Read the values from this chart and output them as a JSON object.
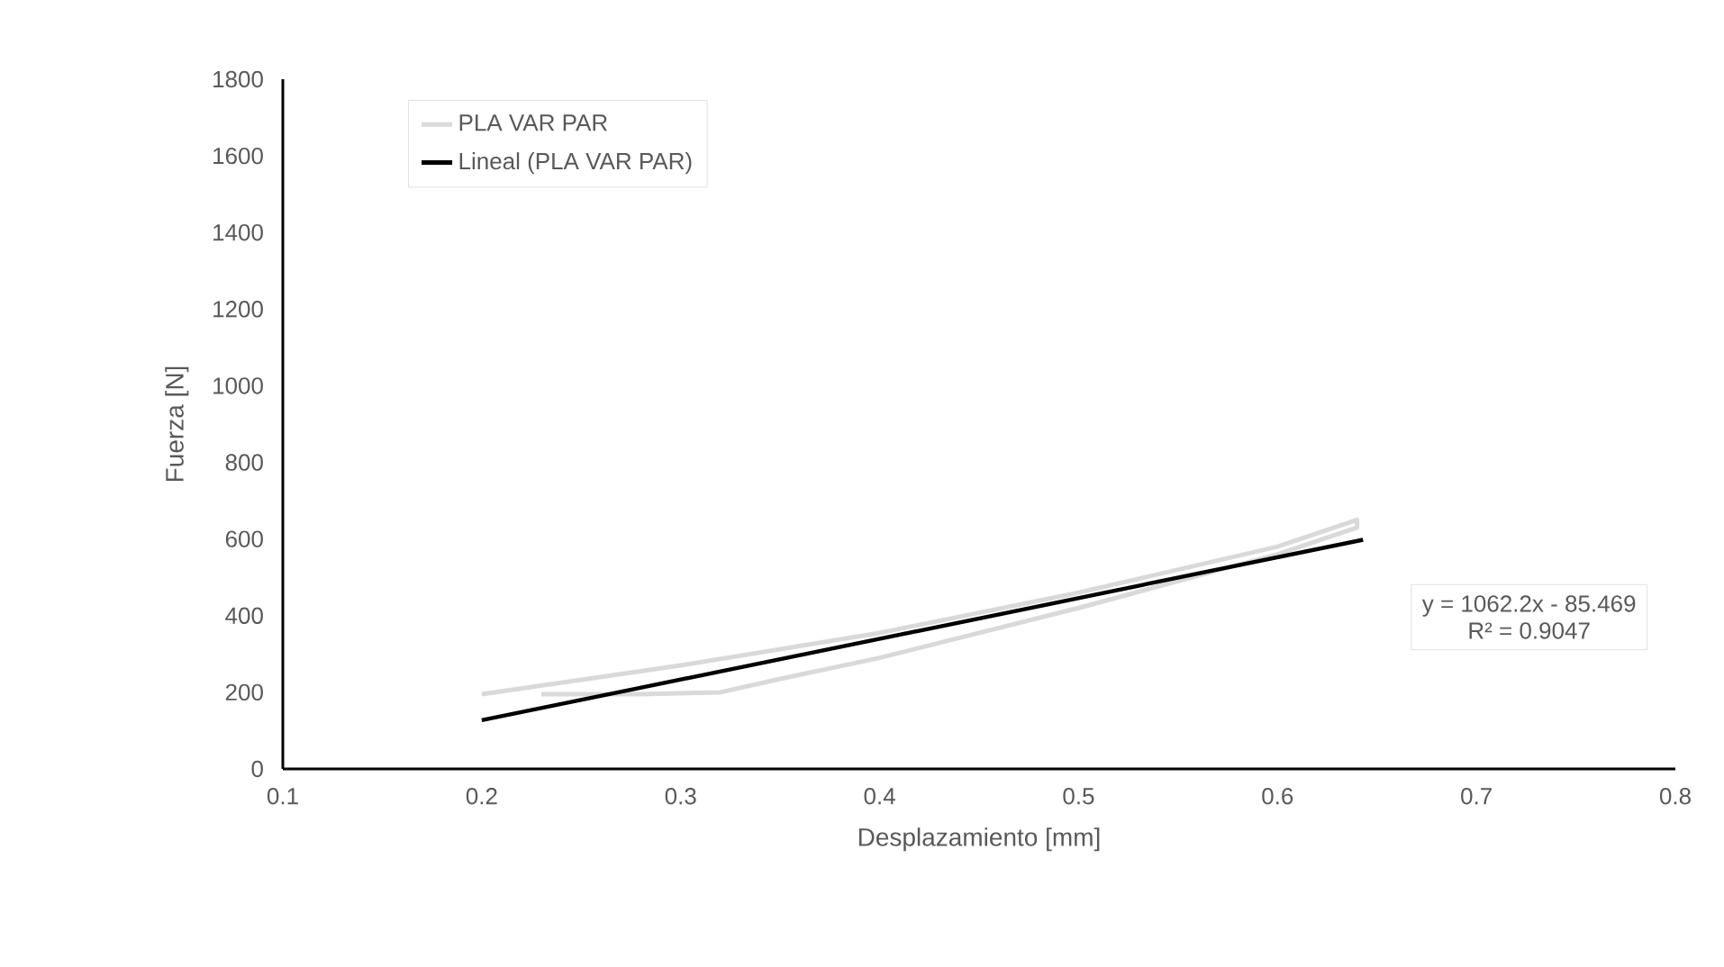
{
  "chart_data": {
    "type": "line",
    "xlabel": "Desplazamiento [mm]",
    "ylabel": "Fuerza [N]",
    "xlim": [
      0.1,
      0.8
    ],
    "ylim": [
      0,
      1800
    ],
    "xticks": [
      0.1,
      0.2,
      0.3,
      0.4,
      0.5,
      0.6,
      0.7,
      0.8
    ],
    "yticks": [
      0,
      200,
      400,
      600,
      800,
      1000,
      1200,
      1400,
      1600,
      1800
    ],
    "legend": "top left",
    "marker": "none",
    "line_style": "solid",
    "grid": false,
    "series": [
      {
        "name": "PLA VAR PAR",
        "color": "#d9d9d9",
        "x": [
          0.2,
          0.3,
          0.4,
          0.5,
          0.6,
          0.64,
          0.64,
          0.6,
          0.5,
          0.4,
          0.35,
          0.32,
          0.28,
          0.23
        ],
        "values": [
          195,
          270,
          355,
          460,
          580,
          650,
          630,
          560,
          420,
          290,
          235,
          200,
          195,
          195
        ]
      },
      {
        "name": "Lineal (PLA VAR PAR)",
        "color": "#000000",
        "x": [
          0.2,
          0.643
        ],
        "values": [
          127,
          598
        ]
      }
    ],
    "annotations": [
      "y = 1062.2x - 85.469",
      "R² = 0.9047"
    ]
  }
}
